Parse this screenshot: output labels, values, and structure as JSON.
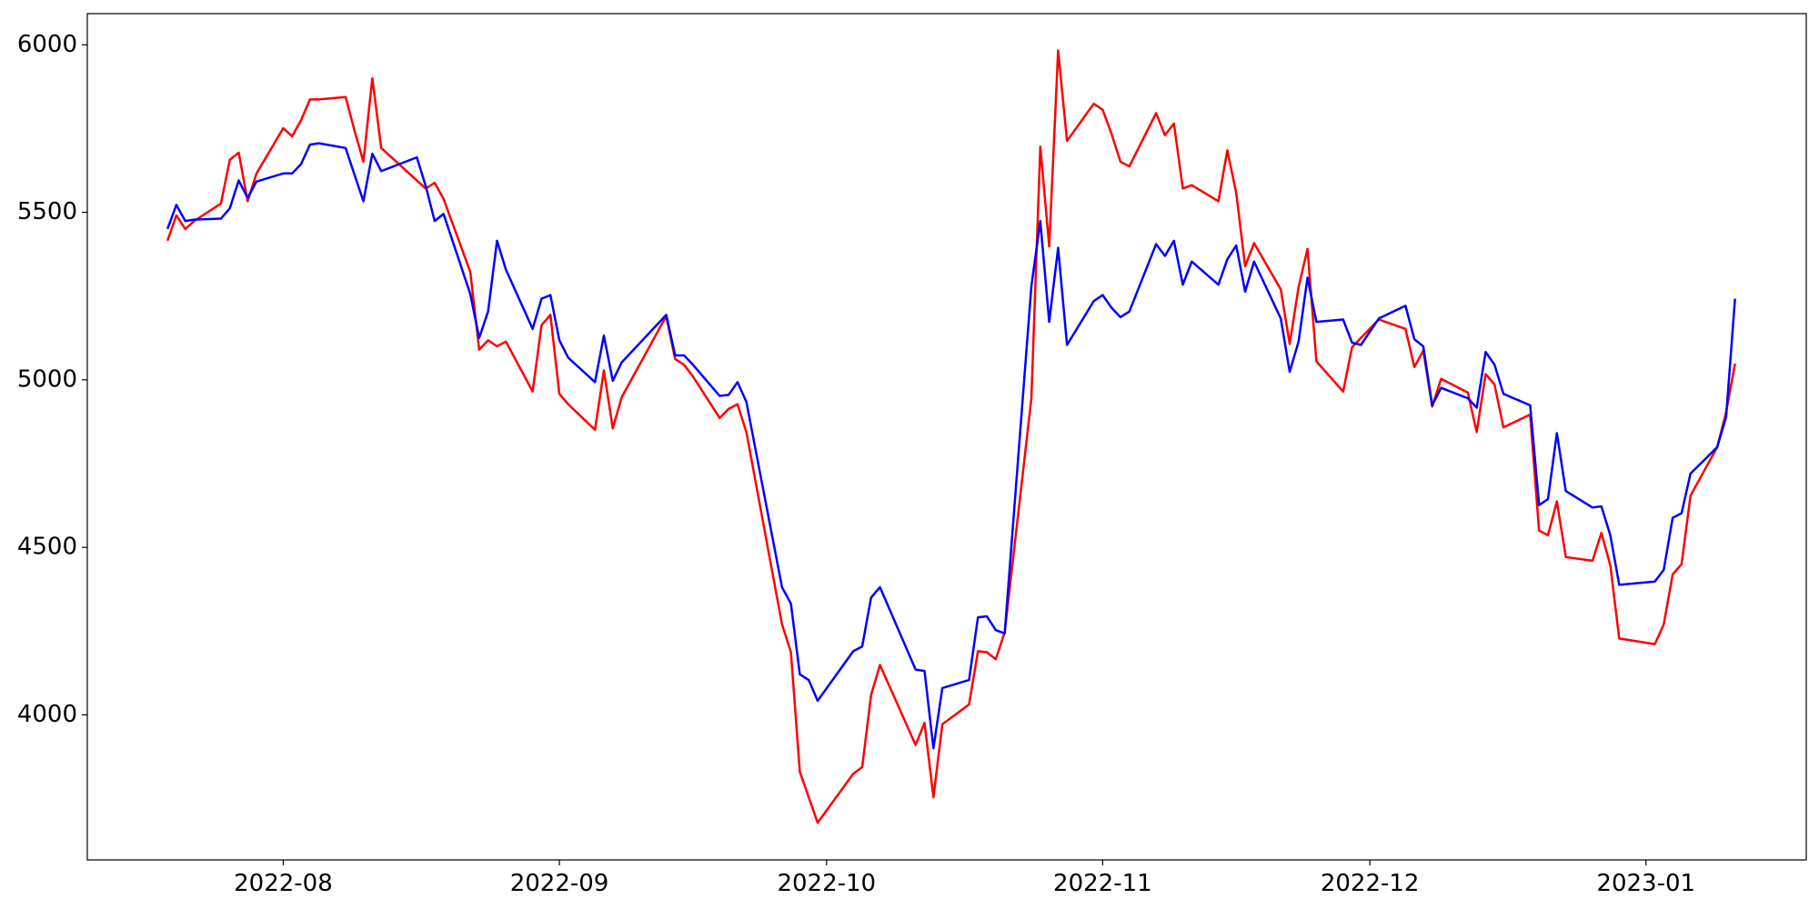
{
  "chart_data": {
    "type": "line",
    "x": [
      "2022-07-19",
      "2022-07-20",
      "2022-07-21",
      "2022-07-22",
      "2022-07-25",
      "2022-07-26",
      "2022-07-27",
      "2022-07-28",
      "2022-07-29",
      "2022-08-01",
      "2022-08-02",
      "2022-08-03",
      "2022-08-04",
      "2022-08-05",
      "2022-08-08",
      "2022-08-09",
      "2022-08-10",
      "2022-08-11",
      "2022-08-12",
      "2022-08-16",
      "2022-08-17",
      "2022-08-18",
      "2022-08-19",
      "2022-08-22",
      "2022-08-23",
      "2022-08-24",
      "2022-08-25",
      "2022-08-26",
      "2022-08-29",
      "2022-08-30",
      "2022-08-31",
      "2022-09-01",
      "2022-09-02",
      "2022-09-05",
      "2022-09-06",
      "2022-09-07",
      "2022-09-08",
      "2022-09-13",
      "2022-09-14",
      "2022-09-15",
      "2022-09-16",
      "2022-09-19",
      "2022-09-20",
      "2022-09-21",
      "2022-09-22",
      "2022-09-26",
      "2022-09-27",
      "2022-09-28",
      "2022-09-29",
      "2022-09-30",
      "2022-10-04",
      "2022-10-05",
      "2022-10-06",
      "2022-10-07",
      "2022-10-11",
      "2022-10-12",
      "2022-10-13",
      "2022-10-14",
      "2022-10-17",
      "2022-10-18",
      "2022-10-19",
      "2022-10-20",
      "2022-10-21",
      "2022-10-24",
      "2022-10-25",
      "2022-10-26",
      "2022-10-27",
      "2022-10-28",
      "2022-10-31",
      "2022-11-01",
      "2022-11-02",
      "2022-11-03",
      "2022-11-04",
      "2022-11-07",
      "2022-11-08",
      "2022-11-09",
      "2022-11-10",
      "2022-11-11",
      "2022-11-14",
      "2022-11-15",
      "2022-11-16",
      "2022-11-17",
      "2022-11-18",
      "2022-11-21",
      "2022-11-22",
      "2022-11-23",
      "2022-11-24",
      "2022-11-25",
      "2022-11-28",
      "2022-11-29",
      "2022-11-30",
      "2022-12-02",
      "2022-12-05",
      "2022-12-06",
      "2022-12-07",
      "2022-12-08",
      "2022-12-09",
      "2022-12-12",
      "2022-12-13",
      "2022-12-14",
      "2022-12-15",
      "2022-12-16",
      "2022-12-19",
      "2022-12-20",
      "2022-12-21",
      "2022-12-22",
      "2022-12-23",
      "2022-12-26",
      "2022-12-27",
      "2022-12-28",
      "2022-12-29",
      "2023-01-02",
      "2023-01-03",
      "2023-01-04",
      "2023-01-05",
      "2023-01-06",
      "2023-01-09",
      "2023-01-10",
      "2023-01-11"
    ],
    "series": [
      {
        "color": "#ff0000",
        "values": [
          5415,
          5491,
          5450,
          5474,
          5526,
          5657,
          5678,
          5533,
          5616,
          5751,
          5727,
          5775,
          5837,
          5837,
          5844,
          5744,
          5651,
          5900,
          5692,
          5595,
          5571,
          5588,
          5540,
          5322,
          5090,
          5118,
          5100,
          5114,
          4965,
          5163,
          5194,
          4958,
          4927,
          4851,
          5028,
          4855,
          4948,
          5190,
          5062,
          5045,
          5010,
          4886,
          4913,
          4927,
          4844,
          4270,
          4187,
          3830,
          3754,
          3678,
          3824,
          3844,
          4059,
          4149,
          3910,
          3976,
          3754,
          3972,
          4031,
          4190,
          4187,
          4166,
          4246,
          4945,
          5696,
          5398,
          5983,
          5713,
          5824,
          5806,
          5734,
          5651,
          5637,
          5796,
          5730,
          5765,
          5571,
          5581,
          5533,
          5685,
          5557,
          5339,
          5408,
          5270,
          5107,
          5277,
          5391,
          5055,
          4965,
          5097,
          5125,
          5180,
          5152,
          5038,
          5087,
          4920,
          5003,
          4962,
          4844,
          5017,
          4986,
          4858,
          4896,
          4550,
          4536,
          4637,
          4471,
          4460,
          4543,
          4446,
          4228,
          4211,
          4270,
          4419,
          4450,
          4654,
          4799,
          4903,
          5048
        ]
      },
      {
        "color": "#0000ff",
        "values": [
          5450,
          5522,
          5474,
          5478,
          5481,
          5512,
          5595,
          5543,
          5592,
          5616,
          5616,
          5644,
          5702,
          5706,
          5692,
          5612,
          5533,
          5675,
          5623,
          5664,
          5578,
          5474,
          5495,
          5256,
          5125,
          5204,
          5415,
          5329,
          5152,
          5242,
          5253,
          5118,
          5066,
          4993,
          5132,
          4997,
          5052,
          5194,
          5073,
          5073,
          5045,
          4952,
          4955,
          4993,
          4934,
          4381,
          4332,
          4121,
          4104,
          4042,
          4190,
          4204,
          4350,
          4381,
          4135,
          4131,
          3900,
          4080,
          4104,
          4291,
          4294,
          4253,
          4243,
          5280,
          5474,
          5173,
          5394,
          5104,
          5235,
          5253,
          5215,
          5187,
          5204,
          5405,
          5370,
          5415,
          5284,
          5353,
          5284,
          5360,
          5401,
          5263,
          5353,
          5183,
          5024,
          5114,
          5305,
          5173,
          5180,
          5111,
          5104,
          5183,
          5221,
          5121,
          5100,
          4924,
          4976,
          4945,
          4917,
          5083,
          5045,
          4958,
          4924,
          4626,
          4644,
          4841,
          4668,
          4619,
          4622,
          4536,
          4388,
          4398,
          4433,
          4588,
          4602,
          4720,
          4799,
          4889,
          5242
        ]
      }
    ],
    "xlim": [
      "2022-07-10",
      "2023-01-19"
    ],
    "xticks": [
      {
        "value": "2022-08-01",
        "label": "2022-08"
      },
      {
        "value": "2022-09-01",
        "label": "2022-09"
      },
      {
        "value": "2022-10-01",
        "label": "2022-10"
      },
      {
        "value": "2022-11-01",
        "label": "2022-11"
      },
      {
        "value": "2022-12-01",
        "label": "2022-12"
      },
      {
        "value": "2023-01-01",
        "label": "2023-01"
      }
    ],
    "ylim": [
      3567,
      6093
    ],
    "yticks": [
      4000,
      4500,
      5000,
      5500,
      6000
    ],
    "grid": false
  }
}
